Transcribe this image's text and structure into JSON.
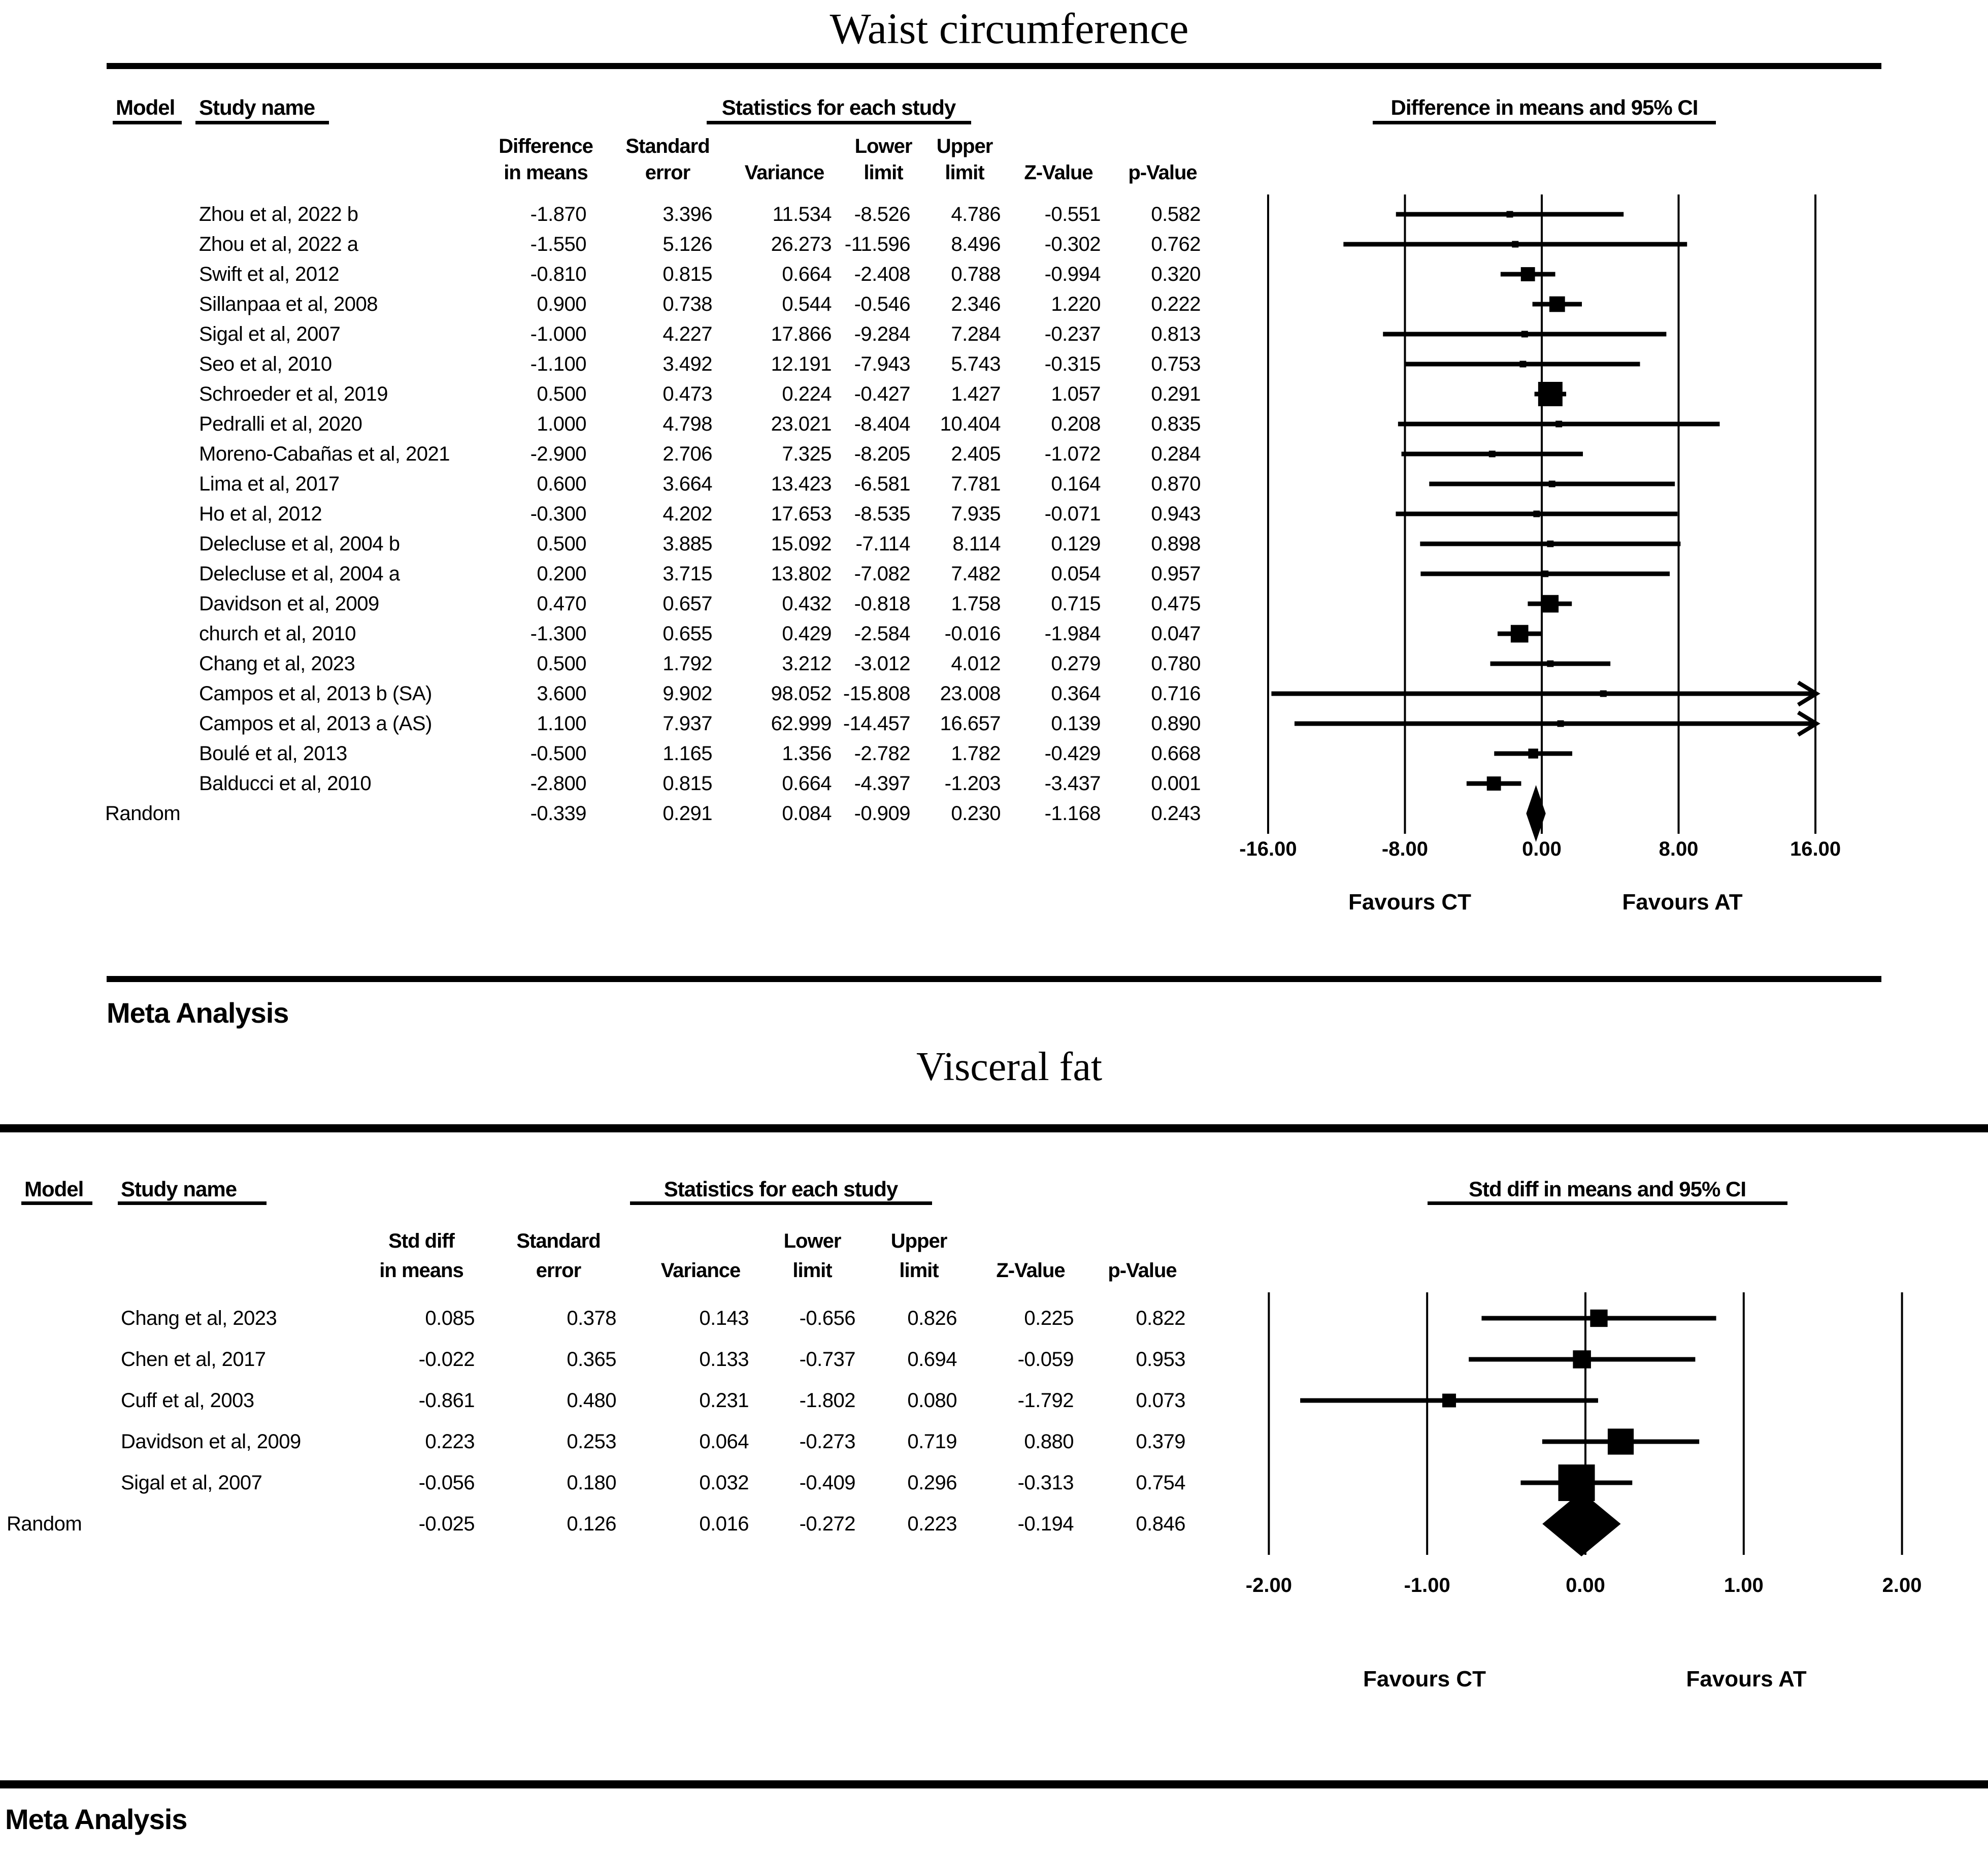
{
  "labels": {
    "model": "Model",
    "study_name": "Study name",
    "statistics": "Statistics for each study",
    "meta_analysis": "Meta Analysis"
  },
  "chart_data": [
    {
      "type": "forest",
      "title": "Waist circumference",
      "effect_header": "Difference in means and 95% CI",
      "columns_line1": [
        "Difference",
        "Standard",
        "",
        "Lower",
        "Upper",
        "",
        ""
      ],
      "columns_line2": [
        "in means",
        "error",
        "Variance",
        "limit",
        "limit",
        "Z-Value",
        "p-Value"
      ],
      "x_ticks": [
        -16,
        -8,
        0,
        8,
        16
      ],
      "x_tick_labels": [
        "-16.00",
        "-8.00",
        "0.00",
        "8.00",
        "16.00"
      ],
      "xlim": [
        -16,
        16
      ],
      "favours_left": "Favours CT",
      "favours_right": "Favours AT",
      "summary_model": "Random",
      "studies": [
        {
          "name": "Zhou et al, 2022 b",
          "diff": -1.87,
          "se": 3.396,
          "variance": 11.534,
          "lower": -8.526,
          "upper": 4.786,
          "z": -0.551,
          "p": 0.582
        },
        {
          "name": "Zhou et al, 2022 a",
          "diff": -1.55,
          "se": 5.126,
          "variance": 26.273,
          "lower": -11.596,
          "upper": 8.496,
          "z": -0.302,
          "p": 0.762
        },
        {
          "name": "Swift et al, 2012",
          "diff": -0.81,
          "se": 0.815,
          "variance": 0.664,
          "lower": -2.408,
          "upper": 0.788,
          "z": -0.994,
          "p": 0.32
        },
        {
          "name": "Sillanpaa et al, 2008",
          "diff": 0.9,
          "se": 0.738,
          "variance": 0.544,
          "lower": -0.546,
          "upper": 2.346,
          "z": 1.22,
          "p": 0.222
        },
        {
          "name": "Sigal et al, 2007",
          "diff": -1.0,
          "se": 4.227,
          "variance": 17.866,
          "lower": -9.284,
          "upper": 7.284,
          "z": -0.237,
          "p": 0.813
        },
        {
          "name": "Seo et al, 2010",
          "diff": -1.1,
          "se": 3.492,
          "variance": 12.191,
          "lower": -7.943,
          "upper": 5.743,
          "z": -0.315,
          "p": 0.753
        },
        {
          "name": "Schroeder et al, 2019",
          "diff": 0.5,
          "se": 0.473,
          "variance": 0.224,
          "lower": -0.427,
          "upper": 1.427,
          "z": 1.057,
          "p": 0.291
        },
        {
          "name": "Pedralli et al, 2020",
          "diff": 1.0,
          "se": 4.798,
          "variance": 23.021,
          "lower": -8.404,
          "upper": 10.404,
          "z": 0.208,
          "p": 0.835
        },
        {
          "name": "Moreno-Cabañas et al, 2021",
          "diff": -2.9,
          "se": 2.706,
          "variance": 7.325,
          "lower": -8.205,
          "upper": 2.405,
          "z": -1.072,
          "p": 0.284
        },
        {
          "name": "Lima et al, 2017",
          "diff": 0.6,
          "se": 3.664,
          "variance": 13.423,
          "lower": -6.581,
          "upper": 7.781,
          "z": 0.164,
          "p": 0.87
        },
        {
          "name": "Ho et al, 2012",
          "diff": -0.3,
          "se": 4.202,
          "variance": 17.653,
          "lower": -8.535,
          "upper": 7.935,
          "z": -0.071,
          "p": 0.943
        },
        {
          "name": "Delecluse et al, 2004 b",
          "diff": 0.5,
          "se": 3.885,
          "variance": 15.092,
          "lower": -7.114,
          "upper": 8.114,
          "z": 0.129,
          "p": 0.898
        },
        {
          "name": "Delecluse et al, 2004 a",
          "diff": 0.2,
          "se": 3.715,
          "variance": 13.802,
          "lower": -7.082,
          "upper": 7.482,
          "z": 0.054,
          "p": 0.957
        },
        {
          "name": "Davidson et al, 2009",
          "diff": 0.47,
          "se": 0.657,
          "variance": 0.432,
          "lower": -0.818,
          "upper": 1.758,
          "z": 0.715,
          "p": 0.475
        },
        {
          "name": "church et al, 2010",
          "diff": -1.3,
          "se": 0.655,
          "variance": 0.429,
          "lower": -2.584,
          "upper": -0.016,
          "z": -1.984,
          "p": 0.047
        },
        {
          "name": "Chang et al, 2023",
          "diff": 0.5,
          "se": 1.792,
          "variance": 3.212,
          "lower": -3.012,
          "upper": 4.012,
          "z": 0.279,
          "p": 0.78
        },
        {
          "name": "Campos et al, 2013 b (SA)",
          "diff": 3.6,
          "se": 9.902,
          "variance": 98.052,
          "lower": -15.808,
          "upper": 23.008,
          "z": 0.364,
          "p": 0.716
        },
        {
          "name": "Campos et al, 2013 a (AS)",
          "diff": 1.1,
          "se": 7.937,
          "variance": 62.999,
          "lower": -14.457,
          "upper": 16.657,
          "z": 0.139,
          "p": 0.89
        },
        {
          "name": "Boulé et al, 2013",
          "diff": -0.5,
          "se": 1.165,
          "variance": 1.356,
          "lower": -2.782,
          "upper": 1.782,
          "z": -0.429,
          "p": 0.668
        },
        {
          "name": "Balducci et al, 2010",
          "diff": -2.8,
          "se": 0.815,
          "variance": 0.664,
          "lower": -4.397,
          "upper": -1.203,
          "z": -3.437,
          "p": 0.001
        }
      ],
      "summary": {
        "diff": -0.339,
        "se": 0.291,
        "variance": 0.084,
        "lower": -0.909,
        "upper": 0.23,
        "z": -1.168,
        "p": 0.243
      }
    },
    {
      "type": "forest",
      "title": "Visceral fat",
      "effect_header": "Std diff in means and 95% CI",
      "columns_line1": [
        "Std diff",
        "Standard",
        "",
        "Lower",
        "Upper",
        "",
        ""
      ],
      "columns_line2": [
        "in means",
        "error",
        "Variance",
        "limit",
        "limit",
        "Z-Value",
        "p-Value"
      ],
      "x_ticks": [
        -2,
        -1,
        0,
        1,
        2
      ],
      "x_tick_labels": [
        "-2.00",
        "-1.00",
        "0.00",
        "1.00",
        "2.00"
      ],
      "xlim": [
        -2,
        2
      ],
      "favours_left": "Favours CT",
      "favours_right": "Favours AT",
      "summary_model": "Random",
      "studies": [
        {
          "name": "Chang et al, 2023",
          "diff": 0.085,
          "se": 0.378,
          "variance": 0.143,
          "lower": -0.656,
          "upper": 0.826,
          "z": 0.225,
          "p": 0.822
        },
        {
          "name": "Chen et al, 2017",
          "diff": -0.022,
          "se": 0.365,
          "variance": 0.133,
          "lower": -0.737,
          "upper": 0.694,
          "z": -0.059,
          "p": 0.953
        },
        {
          "name": "Cuff et al, 2003",
          "diff": -0.861,
          "se": 0.48,
          "variance": 0.231,
          "lower": -1.802,
          "upper": 0.08,
          "z": -1.792,
          "p": 0.073
        },
        {
          "name": "Davidson et al, 2009",
          "diff": 0.223,
          "se": 0.253,
          "variance": 0.064,
          "lower": -0.273,
          "upper": 0.719,
          "z": 0.88,
          "p": 0.379
        },
        {
          "name": "Sigal et al, 2007",
          "diff": -0.056,
          "se": 0.18,
          "variance": 0.032,
          "lower": -0.409,
          "upper": 0.296,
          "z": -0.313,
          "p": 0.754
        }
      ],
      "summary": {
        "diff": -0.025,
        "se": 0.126,
        "variance": 0.016,
        "lower": -0.272,
        "upper": 0.223,
        "z": -0.194,
        "p": 0.846
      }
    }
  ]
}
